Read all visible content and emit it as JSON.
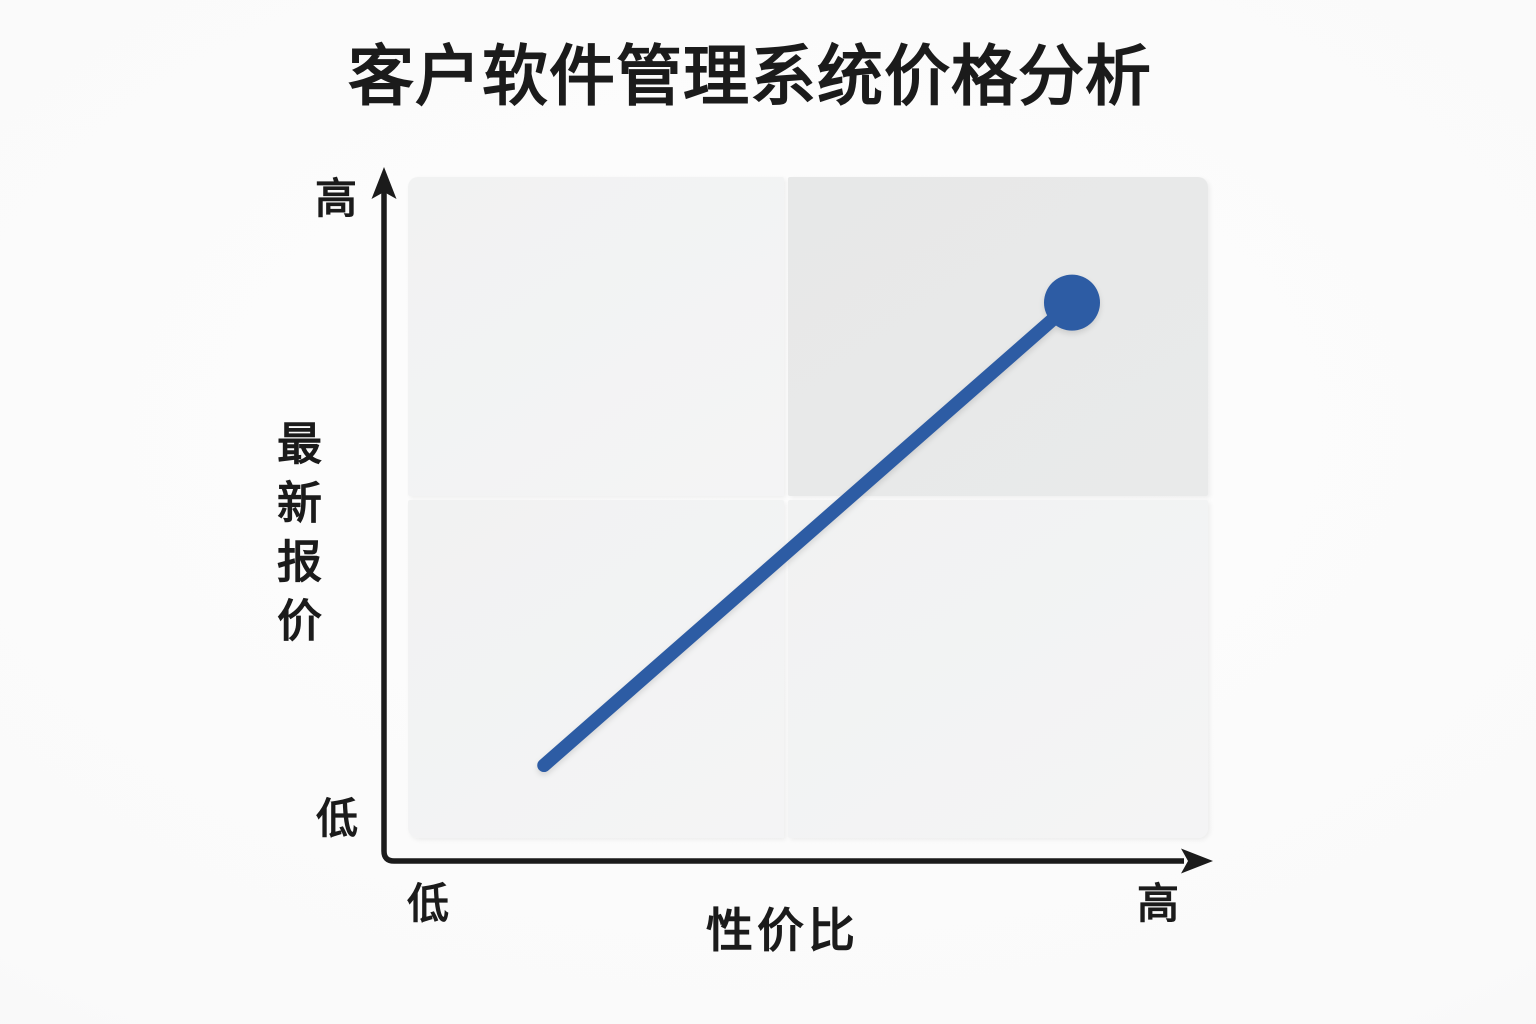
{
  "page": {
    "title": "客户软件管理系统价格分析"
  },
  "chart": {
    "y_axis": {
      "title": "最新报价",
      "high": "高",
      "low": "低"
    },
    "x_axis": {
      "title": "性价比",
      "high": "高",
      "low": "低"
    }
  },
  "colors": {
    "line": "#2d5ca4",
    "axis": "#1b1b1b",
    "text": "#1b1b1b",
    "quadrant": "#f1f2f2",
    "quadrant_highlight": "#e7e8e8",
    "background": "#fafafa"
  },
  "chart_data": {
    "type": "scatter",
    "title": "客户软件管理系统价格分析",
    "xlabel": "性价比",
    "ylabel": "最新报价",
    "x_tick_labels": [
      "低",
      "高"
    ],
    "y_tick_labels": [
      "低",
      "高"
    ],
    "xlim": [
      0,
      1
    ],
    "ylim": [
      0,
      1
    ],
    "grid": "quadrants",
    "highlighted_quadrant": "top-right",
    "legend": "none",
    "series": [
      {
        "type": "line-with-endpoint-marker",
        "color": "#2d5ca4",
        "marker_at": "end",
        "points": [
          {
            "x": 0.17,
            "y": 0.11
          },
          {
            "x": 0.83,
            "y": 0.81
          }
        ]
      }
    ]
  }
}
